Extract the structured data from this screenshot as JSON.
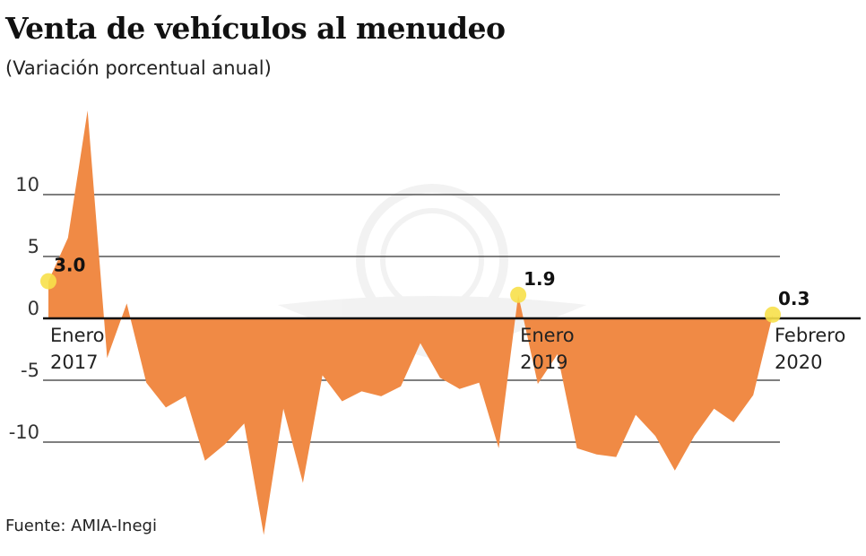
{
  "title": "Venta de vehículos al menudeo",
  "subtitle": "(Variación porcentual anual)",
  "source": "Fuente: AMIA-Inegi",
  "colors": {
    "area": "#f08a45",
    "marker": "#f7e04a",
    "grid": "#555555",
    "zero": "#111111"
  },
  "chart_data": {
    "type": "area",
    "title": "Venta de vehículos al menudeo",
    "subtitle": "(Variación porcentual anual)",
    "ylabel": "Variación porcentual anual",
    "ylim": [
      -17,
      17
    ],
    "yticks": [
      10,
      5,
      0,
      -5,
      -10
    ],
    "x": [
      "2017-01",
      "2017-02",
      "2017-03",
      "2017-04",
      "2017-05",
      "2017-06",
      "2017-07",
      "2017-08",
      "2017-09",
      "2017-10",
      "2017-11",
      "2017-12",
      "2018-01",
      "2018-02",
      "2018-03",
      "2018-04",
      "2018-05",
      "2018-06",
      "2018-07",
      "2018-08",
      "2018-09",
      "2018-10",
      "2018-11",
      "2018-12",
      "2019-01",
      "2019-02",
      "2019-03",
      "2019-04",
      "2019-05",
      "2019-06",
      "2019-07",
      "2019-08",
      "2019-09",
      "2019-10",
      "2019-11",
      "2019-12",
      "2020-01",
      "2020-02"
    ],
    "values": [
      3.0,
      6.5,
      16.8,
      -3.2,
      1.2,
      -5.2,
      -7.2,
      -6.3,
      -11.5,
      -10.2,
      -8.5,
      -17.5,
      -7.3,
      -13.3,
      -4.6,
      -6.7,
      -5.9,
      -6.3,
      -5.5,
      -2.0,
      -4.8,
      -5.7,
      -5.2,
      -10.5,
      1.9,
      -5.3,
      -2.9,
      -10.5,
      -11.0,
      -11.2,
      -7.8,
      -9.5,
      -12.3,
      -9.5,
      -7.3,
      -8.4,
      -6.2,
      0.3
    ],
    "annotations": [
      {
        "value_label": "3.0",
        "index": 0,
        "label_line1": "Enero",
        "label_line2": "2017"
      },
      {
        "value_label": "1.9",
        "index": 24,
        "label_line1": "Enero",
        "label_line2": "2019"
      },
      {
        "value_label": "0.3",
        "index": 37,
        "label_line1": "Febrero",
        "label_line2": "2020"
      }
    ],
    "grid": true
  }
}
